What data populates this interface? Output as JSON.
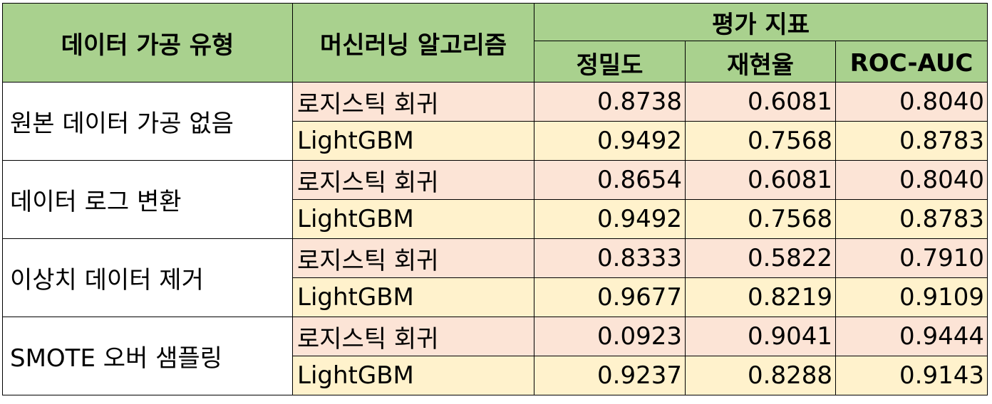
{
  "headers": {
    "data_type": "데이터 가공 유형",
    "algorithm": "머신러닝 알고리즘",
    "metrics_group": "평가 지표",
    "precision": "정밀도",
    "recall": "재현율",
    "roc_auc": "ROC-AUC"
  },
  "groups": [
    {
      "type": "원본 데이터 가공 없음",
      "rows": [
        {
          "algorithm": "로지스틱 회귀",
          "precision": "0.8738",
          "recall": "0.6081",
          "roc_auc": "0.8040"
        },
        {
          "algorithm": "LightGBM",
          "precision": "0.9492",
          "recall": "0.7568",
          "roc_auc": "0.8783"
        }
      ]
    },
    {
      "type": "데이터 로그 변환",
      "rows": [
        {
          "algorithm": "로지스틱 회귀",
          "precision": "0.8654",
          "recall": "0.6081",
          "roc_auc": "0.8040"
        },
        {
          "algorithm": "LightGBM",
          "precision": "0.9492",
          "recall": "0.7568",
          "roc_auc": "0.8783"
        }
      ]
    },
    {
      "type": "이상치 데이터 제거",
      "rows": [
        {
          "algorithm": "로지스틱 회귀",
          "precision": "0.8333",
          "recall": "0.5822",
          "roc_auc": "0.7910"
        },
        {
          "algorithm": "LightGBM",
          "precision": "0.9677",
          "recall": "0.8219",
          "roc_auc": "0.9109"
        }
      ]
    },
    {
      "type": "SMOTE 오버 샘플링",
      "rows": [
        {
          "algorithm": "로지스틱 회귀",
          "precision": "0.0923",
          "recall": "0.9041",
          "roc_auc": "0.9444"
        },
        {
          "algorithm": "LightGBM",
          "precision": "0.9237",
          "recall": "0.8288",
          "roc_auc": "0.9143"
        }
      ]
    }
  ],
  "colors": {
    "header_bg": "#a9d18e",
    "logistic_row_bg": "#fce4d6",
    "lightgbm_row_bg": "#fff2cc",
    "border": "#000000"
  }
}
